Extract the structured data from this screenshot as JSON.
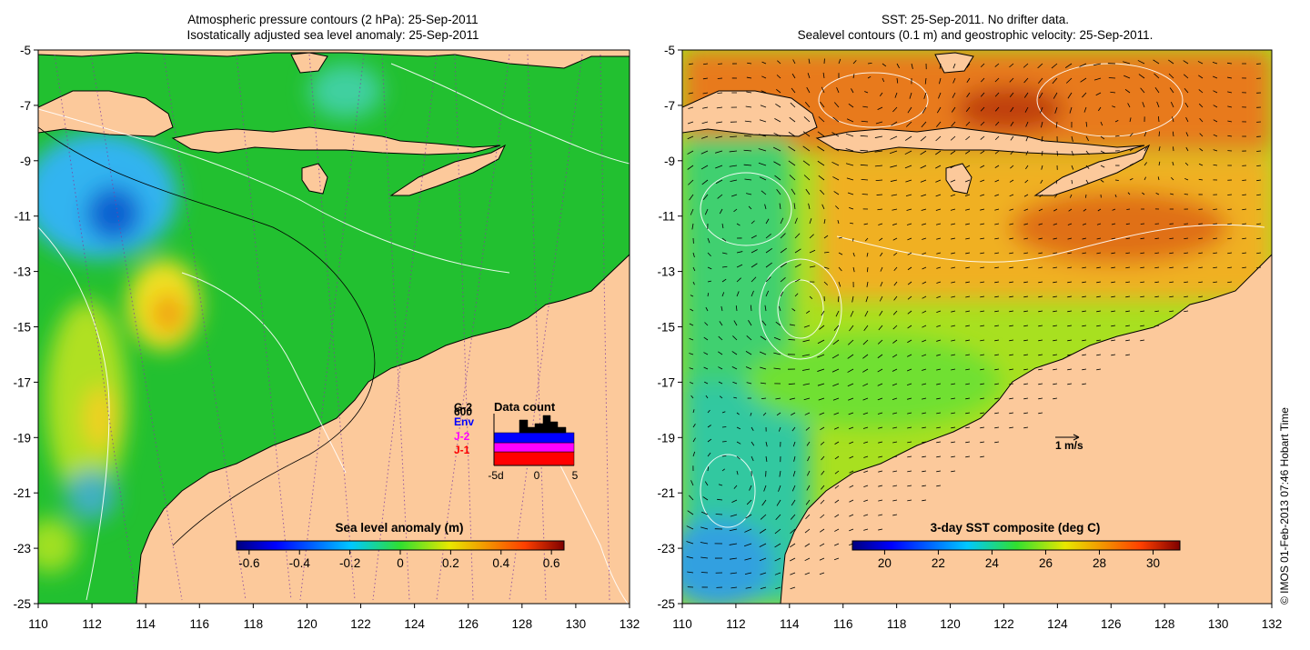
{
  "left_panel": {
    "title_line1": "Atmospheric pressure contours (2 hPa): 25-Sep-2011",
    "title_line2": "Isostatically adjusted sea level anomaly: 25-Sep-2011",
    "colorbar_title": "Sea level anomaly (m)",
    "colorbar_ticks": [
      "-0.6",
      "-0.4",
      "-0.2",
      "0",
      "0.2",
      "0.4",
      "0.6"
    ]
  },
  "right_panel": {
    "title_line1": "SST: 25-Sep-2011. No drifter data.",
    "title_line2": "Sealevel contours (0.1 m) and geostrophic velocity: 25-Sep-2011.",
    "colorbar_title": "3-day SST composite (deg C)",
    "colorbar_ticks": [
      "20",
      "22",
      "24",
      "26",
      "28",
      "30"
    ],
    "scale_label": "1 m/s"
  },
  "data_count": {
    "title": "Data count",
    "top_count": "600",
    "series_labels": [
      "G-2",
      "Env",
      "J-2",
      "J-1"
    ],
    "series_colors": [
      "#000000",
      "#0000ff",
      "#ff00ff",
      "#ff0000"
    ],
    "x_ticks": [
      "-5d",
      "0",
      "5"
    ]
  },
  "x_axis_ticks": [
    "110",
    "112",
    "114",
    "116",
    "118",
    "120",
    "122",
    "124",
    "126",
    "128",
    "130",
    "132"
  ],
  "y_axis_ticks": [
    "-5",
    "-7",
    "-9",
    "-11",
    "-13",
    "-15",
    "-17",
    "-19",
    "-21",
    "-23",
    "-25"
  ],
  "credit": "© IMOS 01-Feb-2013 07:46 Hobart Time",
  "colors": {
    "land": "#fcc99b",
    "sla_background": "#22c030",
    "sst_background": "#f0a020"
  }
}
